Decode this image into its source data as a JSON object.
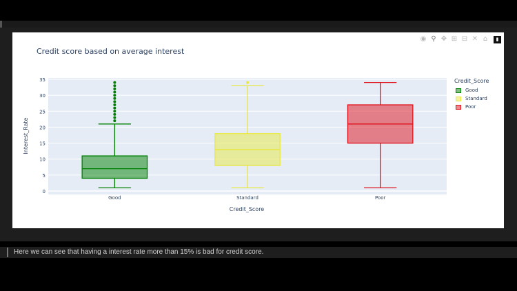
{
  "toolbar": {
    "icons": [
      "camera-icon",
      "zoom-icon",
      "pan-icon",
      "zoom-in-icon",
      "zoom-out-icon",
      "autoscale-icon",
      "reset-axes-icon",
      "plotly-logo-icon"
    ]
  },
  "chart_data": {
    "type": "box",
    "title": "Credit score based on average interest",
    "xlabel": "Credit_Score",
    "ylabel": "Interest_Rate",
    "ylim": [
      0,
      35
    ],
    "yticks": [
      0,
      5,
      10,
      15,
      20,
      25,
      30,
      35
    ],
    "categories": [
      "Good",
      "Standard",
      "Poor"
    ],
    "legend_title": "Credit_Score",
    "legend_position": "top-right",
    "grid": true,
    "series": [
      {
        "name": "Good",
        "color": "#008000",
        "min": 1,
        "q1": 4,
        "median": 7,
        "q3": 11,
        "max": 21,
        "outliers": [
          22,
          23,
          24,
          25,
          26,
          27,
          28,
          29,
          30,
          31,
          32,
          33,
          34
        ]
      },
      {
        "name": "Standard",
        "color": "#e8e840",
        "min": 1,
        "q1": 8,
        "median": 13,
        "q3": 18,
        "max": 33,
        "outliers": [
          34
        ]
      },
      {
        "name": "Poor",
        "color": "#e0101a",
        "min": 1,
        "q1": 15,
        "median": 21,
        "q3": 27,
        "max": 34,
        "outliers": []
      }
    ]
  },
  "markdown": {
    "text": "Here we can see that having a interest rate more than 15% is bad for credit score."
  }
}
